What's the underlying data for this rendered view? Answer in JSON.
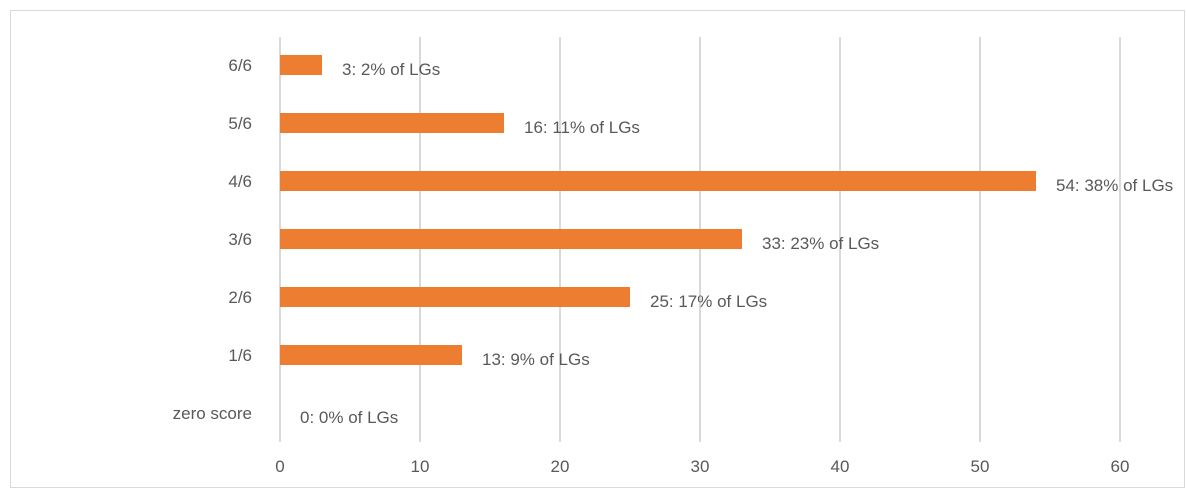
{
  "chart_data": {
    "type": "bar",
    "orientation": "horizontal",
    "categories": [
      "zero score",
      "1/6",
      "2/6",
      "3/6",
      "4/6",
      "5/6",
      "6/6"
    ],
    "values": [
      0,
      13,
      25,
      33,
      54,
      16,
      3
    ],
    "data_labels": [
      "0: 0% of LGs",
      "13: 9% of LGs",
      "25: 17% of LGs",
      "33: 23% of LGs",
      "54: 38% of LGs",
      "16: 11% of LGs",
      "3: 2% of LGs"
    ],
    "xlim": [
      0,
      60
    ],
    "x_ticks": [
      0,
      10,
      20,
      30,
      40,
      50,
      60
    ],
    "title": "",
    "xlabel": "",
    "ylabel": "",
    "grid": "vertical",
    "legend": "none",
    "bar_color": "#ED7D31",
    "grid_color": "#D9D9D9",
    "text_color": "#595959"
  }
}
